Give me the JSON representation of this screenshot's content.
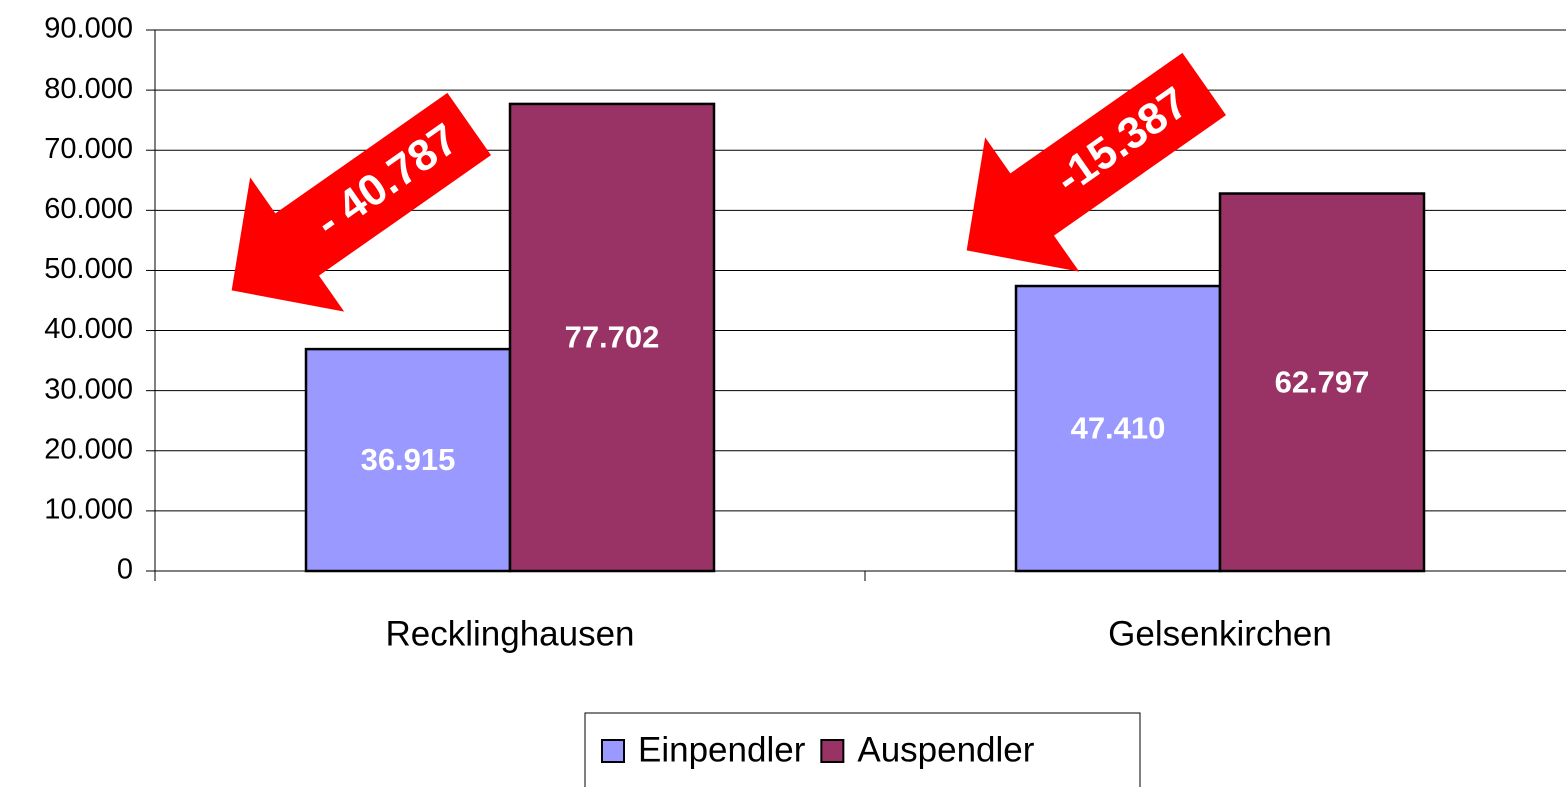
{
  "chart_data": {
    "type": "bar",
    "categories": [
      "Recklinghausen",
      "Gelsenkirchen"
    ],
    "series": [
      {
        "name": "Einpendler",
        "color": "#9999ff",
        "values": [
          36915,
          47410
        ],
        "value_labels": [
          "36.915",
          "47.410"
        ]
      },
      {
        "name": "Auspendler",
        "color": "#993366",
        "values": [
          77702,
          62797
        ],
        "value_labels": [
          "77.702",
          "62.797"
        ]
      }
    ],
    "ylim": [
      0,
      90000
    ],
    "yticks": [
      0,
      {
        "value": 10000,
        "label": "10.000"
      },
      {
        "value": 20000,
        "label": "20.000"
      },
      {
        "value": 30000,
        "label": "30.000"
      },
      {
        "value": 40000,
        "label": "40.000"
      },
      {
        "value": 50000,
        "label": "50.000"
      },
      {
        "value": 60000,
        "label": "60.000"
      },
      {
        "value": 70000,
        "label": "70.000"
      },
      {
        "value": 80000,
        "label": "80.000"
      },
      {
        "value": 90000,
        "label": "90.000"
      }
    ],
    "grid": true,
    "legend": "bottom",
    "annotations": [
      "- 40.787",
      "-15.387"
    ]
  }
}
